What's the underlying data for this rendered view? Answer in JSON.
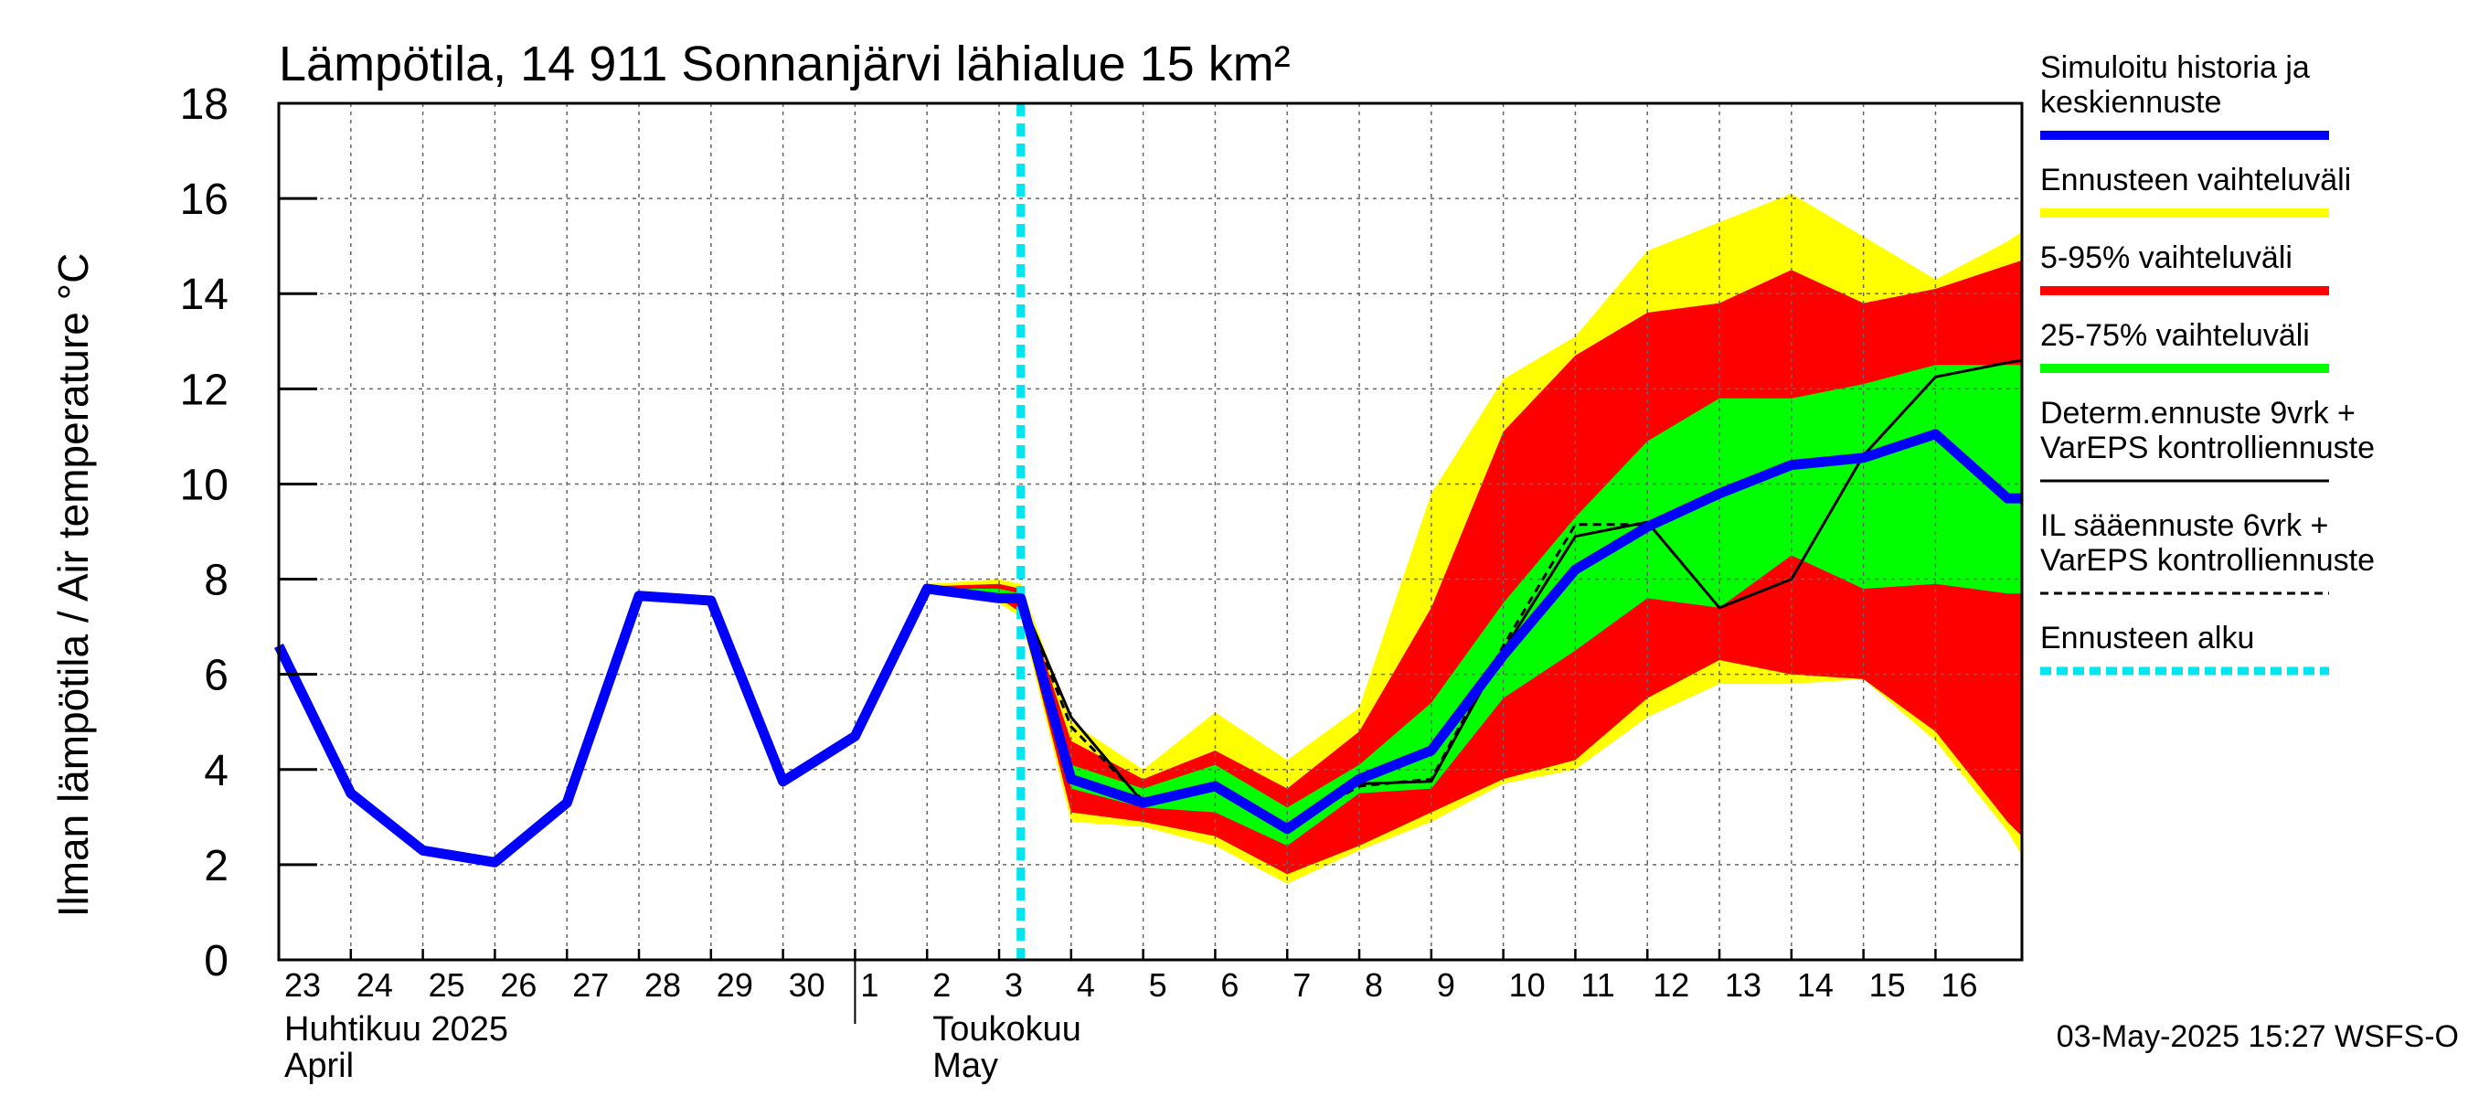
{
  "chart_data": {
    "type": "line",
    "title": "Lämpötila, 14 911 Sonnanjärvi lähialue 15 km²",
    "ylabel": "Ilman lämpötila / Air temperature   °C",
    "ylim": [
      0,
      18
    ],
    "yticks": [
      "0",
      "2",
      "4",
      "6",
      "8",
      "10",
      "12",
      "14",
      "16",
      "18"
    ],
    "xlim": [
      0,
      24.2
    ],
    "xtick_labels": [
      "23",
      "24",
      "25",
      "26",
      "27",
      "28",
      "29",
      "30",
      "1",
      "2",
      "3",
      "4",
      "5",
      "6",
      "7",
      "8",
      "9",
      "10",
      "11",
      "12",
      "13",
      "14",
      "15",
      "16"
    ],
    "month_labels": [
      {
        "line1": "Huhtikuu  2025",
        "line2": "April",
        "day_index": 0
      },
      {
        "line1": "Toukokuu",
        "line2": "May",
        "day_index": 9
      }
    ],
    "month_boundary_day_index": 8,
    "forecast_start_x": 10.3,
    "grid": true,
    "legend_placement": "right",
    "footer": "03-May-2025 15:27 WSFS-O",
    "legend": [
      {
        "text": "Simuloitu historia ja\nkeskiennuste",
        "color": "#0000ff",
        "style": "thick"
      },
      {
        "text": "Ennusteen vaihteluväli",
        "color": "#ffff00",
        "style": "thick"
      },
      {
        "text": "5-95% vaihteluväli",
        "color": "#ff0000",
        "style": "thick"
      },
      {
        "text": "25-75% vaihteluväli",
        "color": "#00ff00",
        "style": "thick"
      },
      {
        "text": "Determ.ennuste 9vrk +\nVarEPS kontrolliennuste",
        "color": "#000000",
        "style": "thin"
      },
      {
        "text": "IL sääennuste 6vrk  +\n  VarEPS kontrolliennuste",
        "color": "#000000",
        "style": "dashed"
      },
      {
        "text": "Ennusteen alku",
        "color": "#00e5ee",
        "style": "dotted"
      }
    ],
    "bands": {
      "x": [
        9,
        10,
        10.3,
        11,
        12,
        13,
        14,
        15,
        16,
        17,
        18,
        19,
        20,
        21,
        22,
        23,
        24,
        24.2
      ],
      "full": {
        "color": "#ffff00",
        "upper": [
          7.9,
          8.0,
          7.9,
          5.0,
          4.0,
          5.2,
          4.2,
          5.3,
          9.8,
          12.2,
          13.1,
          14.9,
          15.5,
          16.1,
          15.2,
          14.3,
          15.1,
          15.3
        ],
        "lower": [
          7.7,
          7.5,
          7.2,
          2.9,
          2.8,
          2.4,
          1.6,
          2.3,
          2.9,
          3.7,
          4.0,
          5.1,
          5.8,
          5.8,
          5.9,
          4.6,
          2.7,
          2.2
        ]
      },
      "p5_95": {
        "color": "#ff0000",
        "upper": [
          7.85,
          7.9,
          7.8,
          4.6,
          3.8,
          4.4,
          3.6,
          4.8,
          7.4,
          11.1,
          12.7,
          13.6,
          13.8,
          14.5,
          13.8,
          14.1,
          14.6,
          14.7
        ],
        "lower": [
          7.75,
          7.6,
          7.3,
          3.1,
          2.9,
          2.6,
          1.8,
          2.4,
          3.1,
          3.8,
          4.2,
          5.5,
          6.3,
          6.0,
          5.9,
          4.8,
          2.9,
          2.6
        ]
      },
      "p25_75": {
        "color": "#00ff00",
        "upper": [
          7.8,
          7.8,
          7.7,
          4.1,
          3.6,
          4.1,
          3.2,
          4.1,
          5.4,
          7.5,
          9.3,
          10.9,
          11.8,
          11.8,
          12.1,
          12.5,
          12.5,
          12.5
        ],
        "lower": [
          7.8,
          7.7,
          7.5,
          3.6,
          3.2,
          3.1,
          2.4,
          3.5,
          3.6,
          5.5,
          6.5,
          7.6,
          7.4,
          8.5,
          7.8,
          7.9,
          7.7,
          7.7
        ]
      }
    },
    "series": [
      {
        "name": "Simuloitu historia ja keskiennuste",
        "color": "#0000ff",
        "x": [
          0,
          1,
          2,
          3,
          4,
          5,
          6,
          7,
          8,
          9,
          10,
          10.3,
          11,
          12,
          13,
          14,
          15,
          16,
          17,
          18,
          19,
          20,
          21,
          22,
          23,
          24,
          24.2
        ],
        "y": [
          6.6,
          3.5,
          2.3,
          2.05,
          3.3,
          7.65,
          7.55,
          3.75,
          4.7,
          7.8,
          7.6,
          7.6,
          3.8,
          3.3,
          3.65,
          2.75,
          3.8,
          4.4,
          6.4,
          8.2,
          9.1,
          9.8,
          10.4,
          10.55,
          11.05,
          9.7,
          9.7
        ]
      },
      {
        "name": "Determ.ennuste 9vrk + VarEPS kontrolliennuste",
        "color": "#000000",
        "x": [
          9,
          10,
          10.3,
          11,
          12,
          13,
          14,
          15,
          16,
          17,
          18,
          19,
          20,
          21,
          22,
          23,
          24,
          24.2
        ],
        "y": [
          7.8,
          7.65,
          7.6,
          5.1,
          3.3,
          3.7,
          2.75,
          3.7,
          3.75,
          6.5,
          8.9,
          9.2,
          7.4,
          8.0,
          10.6,
          12.25,
          12.55,
          12.6
        ]
      },
      {
        "name": "IL sääennuste 6vrk + VarEPS kontrolliennuste",
        "color": "#000000",
        "dashed": true,
        "x": [
          10.3,
          11,
          12,
          13,
          14,
          15,
          16,
          17,
          18,
          19
        ],
        "y": [
          7.6,
          4.9,
          3.35,
          3.7,
          2.8,
          3.65,
          3.8,
          6.6,
          9.15,
          9.15
        ]
      }
    ]
  }
}
